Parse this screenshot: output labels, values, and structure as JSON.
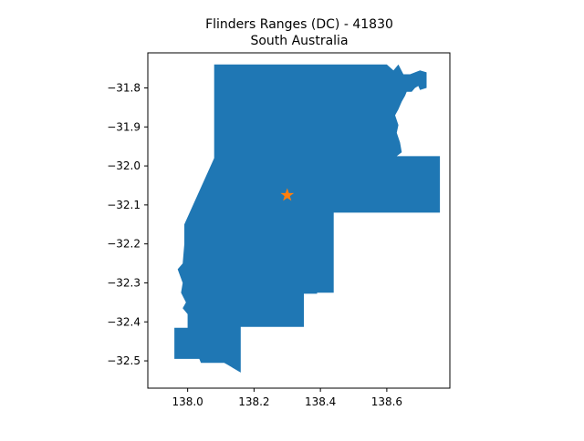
{
  "title": {
    "line1": "Flinders Ranges (DC) - 41830",
    "line2": "South Australia"
  },
  "colors": {
    "region_fill": "#1f77b4",
    "marker_fill": "#ff7f0e",
    "axes": "#000000"
  },
  "map_data": {
    "type": "choropleth-outline",
    "region": "Flinders Ranges (DC)",
    "state": "South Australia",
    "xlim": [
      137.88,
      138.79
    ],
    "ylim": [
      -32.57,
      -31.71
    ],
    "x_ticks": [
      138.0,
      138.2,
      138.4,
      138.6
    ],
    "x_tick_labels": [
      "138.0",
      "138.2",
      "138.4",
      "138.6"
    ],
    "y_ticks": [
      -31.8,
      -31.9,
      -32.0,
      -32.1,
      -32.2,
      -32.3,
      -32.4,
      -32.5
    ],
    "y_tick_labels": [
      "−31.8",
      "−31.9",
      "−32.0",
      "−32.1",
      "−32.2",
      "−32.3",
      "−32.4",
      "−32.5"
    ],
    "centroid": [
      138.3,
      -32.075
    ],
    "marker_icon": "star-icon",
    "boundary": [
      [
        138.08,
        -31.74
      ],
      [
        138.6,
        -31.74
      ],
      [
        138.62,
        -31.755
      ],
      [
        138.635,
        -31.74
      ],
      [
        138.65,
        -31.765
      ],
      [
        138.67,
        -31.765
      ],
      [
        138.7,
        -31.755
      ],
      [
        138.72,
        -31.76
      ],
      [
        138.72,
        -31.8
      ],
      [
        138.7,
        -31.805
      ],
      [
        138.695,
        -31.795
      ],
      [
        138.685,
        -31.8
      ],
      [
        138.675,
        -31.81
      ],
      [
        138.66,
        -31.81
      ],
      [
        138.655,
        -31.82
      ],
      [
        138.645,
        -31.835
      ],
      [
        138.635,
        -31.855
      ],
      [
        138.625,
        -31.87
      ],
      [
        138.635,
        -31.895
      ],
      [
        138.63,
        -31.915
      ],
      [
        138.64,
        -31.94
      ],
      [
        138.645,
        -31.965
      ],
      [
        138.63,
        -31.975
      ],
      [
        138.76,
        -31.975
      ],
      [
        138.76,
        -32.12
      ],
      [
        138.44,
        -32.12
      ],
      [
        138.44,
        -32.325
      ],
      [
        138.39,
        -32.325
      ],
      [
        138.39,
        -32.328
      ],
      [
        138.35,
        -32.328
      ],
      [
        138.35,
        -32.413
      ],
      [
        138.16,
        -32.413
      ],
      [
        138.16,
        -32.53
      ],
      [
        138.12,
        -32.51
      ],
      [
        138.11,
        -32.505
      ],
      [
        138.04,
        -32.505
      ],
      [
        138.035,
        -32.495
      ],
      [
        137.96,
        -32.495
      ],
      [
        137.96,
        -32.415
      ],
      [
        138.0,
        -32.415
      ],
      [
        138.0,
        -32.38
      ],
      [
        137.985,
        -32.365
      ],
      [
        137.995,
        -32.35
      ],
      [
        137.98,
        -32.325
      ],
      [
        137.985,
        -32.3
      ],
      [
        137.97,
        -32.265
      ],
      [
        137.985,
        -32.25
      ],
      [
        137.99,
        -32.2
      ],
      [
        137.99,
        -32.15
      ],
      [
        138.08,
        -31.98
      ]
    ]
  }
}
